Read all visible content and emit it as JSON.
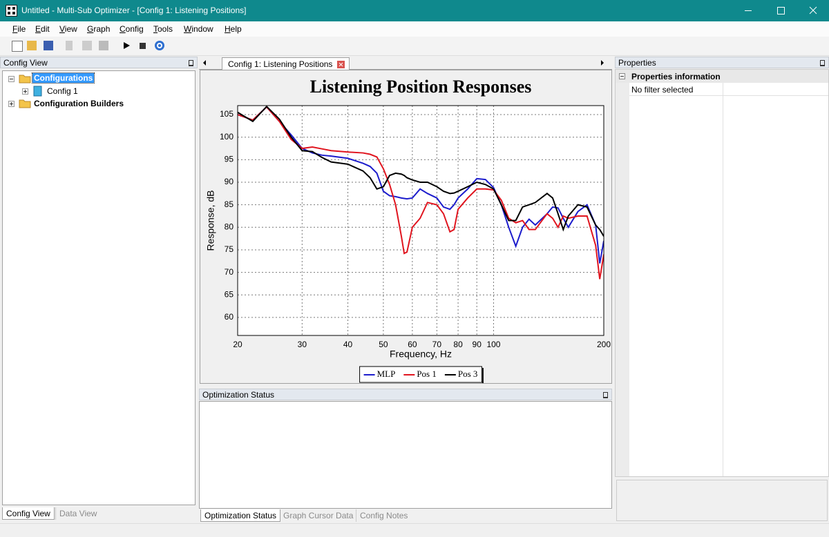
{
  "window": {
    "title": "Untitled - Multi-Sub Optimizer - [Config 1: Listening Positions]"
  },
  "menu": [
    "File",
    "Edit",
    "View",
    "Graph",
    "Config",
    "Tools",
    "Window",
    "Help"
  ],
  "left_panel": {
    "title": "Config View",
    "tree": [
      "Configurations",
      "Config 1",
      "Configuration Builders"
    ],
    "tabs": [
      "Config View",
      "Data View"
    ]
  },
  "document_tab": "Config 1: Listening Positions",
  "chart_data": {
    "type": "line",
    "title": "Listening Position Responses",
    "x_label": "Frequency, Hz",
    "y_label": "Response, dB",
    "x": [
      20,
      22,
      24,
      26,
      28,
      30,
      32,
      34,
      36,
      40,
      44,
      46,
      48,
      50,
      52,
      54,
      56,
      57,
      58,
      60,
      63,
      66,
      70,
      73,
      76,
      78,
      80,
      85,
      90,
      95,
      100,
      105,
      110,
      115,
      120,
      125,
      130,
      140,
      145,
      150,
      155,
      160,
      170,
      180,
      190,
      195,
      200
    ],
    "series": [
      {
        "name": "MLP",
        "color": "#1c1ccc",
        "values": [
          105,
          103.8,
          106.7,
          103.5,
          100.5,
          97.5,
          96.5,
          96,
          95.8,
          95.3,
          94.2,
          93.5,
          92,
          88,
          87,
          86.8,
          86.5,
          86.4,
          86.3,
          86.5,
          88.5,
          87.5,
          86.5,
          84.5,
          84,
          85,
          86.5,
          88.5,
          90.8,
          90.6,
          88.8,
          85,
          80,
          75.8,
          80,
          81.8,
          80.5,
          83,
          84.5,
          84.3,
          82,
          80,
          83.5,
          85,
          80.5,
          72,
          77
        ]
      },
      {
        "name": "Pos 1",
        "color": "#e0141e",
        "values": [
          105,
          103.8,
          106.7,
          103.5,
          99.5,
          97.5,
          97.8,
          97.4,
          97,
          96.7,
          96.5,
          96.2,
          95.6,
          93,
          89.5,
          85,
          78,
          74.2,
          74.5,
          80,
          82,
          85.5,
          85,
          83,
          79,
          79.5,
          84,
          86.5,
          88.5,
          88.5,
          88.3,
          86,
          82,
          81,
          81.5,
          79.5,
          79.5,
          83,
          82,
          80,
          82.5,
          82,
          82.5,
          82.5,
          76,
          68.5,
          74
        ]
      },
      {
        "name": "Pos 3",
        "color": "#000000",
        "values": [
          105.5,
          103.5,
          106.8,
          104,
          100,
          97,
          96.8,
          95.5,
          94.5,
          94,
          92.5,
          91,
          88.5,
          89,
          91.5,
          92,
          91.8,
          91.5,
          91,
          90.5,
          90,
          90,
          89,
          88,
          87.5,
          87.6,
          88,
          89,
          90,
          89.5,
          88.5,
          85,
          81.5,
          81.5,
          84.5,
          85,
          85.5,
          87.5,
          86.5,
          83,
          79.5,
          82.5,
          85,
          84.5,
          80.5,
          79.5,
          78
        ]
      }
    ],
    "xlim": [
      20,
      200
    ],
    "xticks": [
      20,
      30,
      40,
      50,
      60,
      70,
      80,
      90,
      100,
      200
    ],
    "log_x": true,
    "ylim": [
      56,
      107
    ],
    "yticks": [
      60,
      65,
      70,
      75,
      80,
      85,
      90,
      95,
      100,
      105
    ],
    "grid": true,
    "legend": "bottom"
  },
  "status_panel": {
    "title": "Optimization Status",
    "tabs": [
      "Optimization Status",
      "Graph Cursor Data",
      "Config Notes"
    ]
  },
  "properties": {
    "title": "Properties",
    "section": "Properties information",
    "row": "No filter selected"
  }
}
